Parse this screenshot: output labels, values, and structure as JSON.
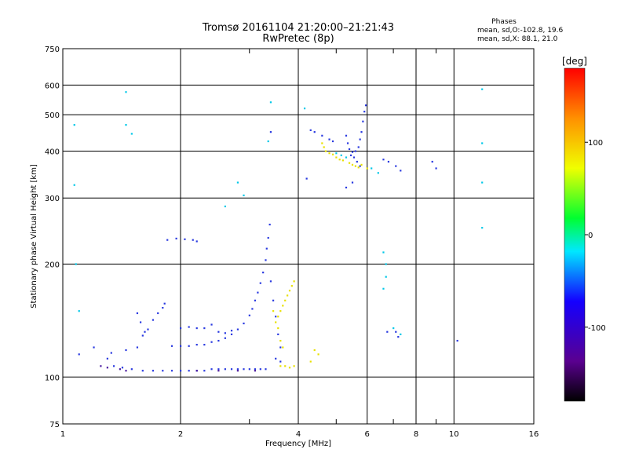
{
  "header": {
    "title_line1": "Tromsø 20161104 21:20:00–21:21:43",
    "title_line2": "RwPretec (8p)"
  },
  "phases": {
    "heading": "Phases",
    "line_o": "mean, sd,O:-102.8, 19.6",
    "line_x": "mean, sd,X: 88.1, 21.0"
  },
  "chart_data": {
    "type": "scatter",
    "xlabel": "Frequency [MHz]",
    "ylabel": "Stationary phase Virtual Height [km]",
    "x_scale": "log",
    "y_scale": "log",
    "xlim": [
      1,
      16
    ],
    "ylim": [
      75,
      750
    ],
    "x_ticks": [
      1,
      2,
      4,
      6,
      8,
      10,
      16
    ],
    "x_tick_labels": [
      "1",
      "2",
      "4",
      "6",
      "8",
      "10",
      "16"
    ],
    "y_ticks": [
      75,
      100,
      200,
      300,
      400,
      500,
      600,
      750
    ],
    "y_tick_labels": [
      "75",
      "100",
      "200",
      "300",
      "400",
      "500",
      "600",
      "750"
    ],
    "x_major_grid": [
      1,
      2,
      4,
      6,
      8,
      10,
      16
    ],
    "x_minor_grid": [
      3,
      5,
      7,
      9
    ],
    "y_grid": [
      100,
      200,
      300,
      400,
      500,
      600
    ],
    "grid": true,
    "colorbar": {
      "label": "[deg]",
      "range": [
        -180,
        180
      ],
      "ticks": [
        100,
        0,
        -100
      ],
      "tick_labels": [
        "100",
        "0",
        "-100"
      ],
      "colormap": "rainbow (black-purple-blue-cyan-green-yellow-red)"
    },
    "series": [
      {
        "mode": "O",
        "color": "#2a3ae0",
        "points": [
          [
            1.35,
            107
          ],
          [
            1.42,
            106
          ],
          [
            1.5,
            105
          ],
          [
            1.6,
            104
          ],
          [
            1.7,
            104
          ],
          [
            1.8,
            104
          ],
          [
            1.9,
            104
          ],
          [
            2.0,
            104
          ],
          [
            2.1,
            104
          ],
          [
            2.2,
            104
          ],
          [
            2.3,
            104
          ],
          [
            2.4,
            105
          ],
          [
            2.5,
            105
          ],
          [
            2.6,
            105
          ],
          [
            2.7,
            105
          ],
          [
            2.8,
            105
          ],
          [
            2.9,
            105
          ],
          [
            3.0,
            105
          ],
          [
            3.1,
            105
          ],
          [
            3.2,
            105
          ],
          [
            3.3,
            105
          ],
          [
            1.3,
            112
          ],
          [
            1.33,
            116
          ],
          [
            1.45,
            118
          ],
          [
            1.55,
            120
          ],
          [
            1.6,
            129
          ],
          [
            1.65,
            134
          ],
          [
            1.7,
            142
          ],
          [
            1.75,
            148
          ],
          [
            1.8,
            153
          ],
          [
            1.82,
            157
          ],
          [
            1.9,
            121
          ],
          [
            2.0,
            121
          ],
          [
            2.1,
            121
          ],
          [
            2.2,
            122
          ],
          [
            2.3,
            122
          ],
          [
            2.4,
            124
          ],
          [
            2.5,
            125
          ],
          [
            2.6,
            127
          ],
          [
            2.7,
            130
          ],
          [
            2.8,
            134
          ],
          [
            2.9,
            139
          ],
          [
            3.0,
            146
          ],
          [
            3.05,
            152
          ],
          [
            3.1,
            160
          ],
          [
            3.15,
            168
          ],
          [
            3.2,
            178
          ],
          [
            3.25,
            190
          ],
          [
            3.3,
            205
          ],
          [
            3.32,
            220
          ],
          [
            3.35,
            235
          ],
          [
            3.38,
            255
          ],
          [
            2.0,
            135
          ],
          [
            2.1,
            136
          ],
          [
            2.2,
            135
          ],
          [
            2.3,
            135
          ],
          [
            2.4,
            138
          ],
          [
            2.5,
            132
          ],
          [
            2.6,
            131
          ],
          [
            2.7,
            133
          ],
          [
            1.85,
            232
          ],
          [
            1.95,
            234
          ],
          [
            2.05,
            233
          ],
          [
            2.15,
            232
          ],
          [
            2.2,
            230
          ],
          [
            3.4,
            180
          ],
          [
            3.45,
            160
          ],
          [
            3.5,
            145
          ],
          [
            3.55,
            130
          ],
          [
            3.6,
            120
          ],
          [
            3.5,
            112
          ],
          [
            3.6,
            110
          ],
          [
            1.55,
            148
          ],
          [
            1.58,
            140
          ],
          [
            1.62,
            132
          ],
          [
            1.1,
            115
          ],
          [
            1.2,
            120
          ],
          [
            3.4,
            450
          ],
          [
            4.3,
            455
          ],
          [
            4.4,
            450
          ],
          [
            4.6,
            440
          ],
          [
            4.8,
            430
          ],
          [
            4.9,
            425
          ],
          [
            5.3,
            440
          ],
          [
            5.35,
            420
          ],
          [
            5.4,
            405
          ],
          [
            5.5,
            398
          ],
          [
            5.6,
            400
          ],
          [
            5.7,
            410
          ],
          [
            5.75,
            430
          ],
          [
            5.8,
            450
          ],
          [
            5.85,
            480
          ],
          [
            5.9,
            510
          ],
          [
            5.95,
            530
          ],
          [
            5.45,
            390
          ],
          [
            5.55,
            385
          ],
          [
            5.65,
            375
          ],
          [
            5.75,
            365
          ],
          [
            6.6,
            380
          ],
          [
            6.8,
            375
          ],
          [
            7.1,
            365
          ],
          [
            7.3,
            355
          ],
          [
            4.2,
            338
          ],
          [
            5.3,
            320
          ],
          [
            5.5,
            330
          ],
          [
            6.75,
            132
          ],
          [
            7.1,
            132
          ],
          [
            7.2,
            128
          ],
          [
            10.2,
            125
          ],
          [
            8.8,
            375
          ],
          [
            9.0,
            360
          ]
        ]
      },
      {
        "mode": "X",
        "color": "#e8e000",
        "points": [
          [
            3.5,
            140
          ],
          [
            3.55,
            145
          ],
          [
            3.6,
            150
          ],
          [
            3.65,
            155
          ],
          [
            3.7,
            160
          ],
          [
            3.75,
            165
          ],
          [
            3.8,
            170
          ],
          [
            3.85,
            175
          ],
          [
            3.9,
            180
          ],
          [
            3.45,
            150
          ],
          [
            3.55,
            135
          ],
          [
            3.6,
            125
          ],
          [
            3.65,
            120
          ],
          [
            3.6,
            107
          ],
          [
            3.7,
            107
          ],
          [
            3.8,
            106
          ],
          [
            3.9,
            107
          ],
          [
            4.6,
            420
          ],
          [
            4.65,
            410
          ],
          [
            4.7,
            400
          ],
          [
            4.8,
            395
          ],
          [
            4.9,
            392
          ],
          [
            5.0,
            385
          ],
          [
            5.1,
            380
          ],
          [
            5.2,
            378
          ],
          [
            5.4,
            372
          ],
          [
            5.5,
            368
          ],
          [
            5.6,
            365
          ],
          [
            5.7,
            362
          ],
          [
            5.8,
            368
          ],
          [
            6.0,
            360
          ],
          [
            4.3,
            110
          ],
          [
            4.4,
            118
          ],
          [
            4.5,
            115
          ]
        ]
      },
      {
        "mode": "O-deep",
        "color": "#4a1aa0",
        "points": [
          [
            1.25,
            107
          ],
          [
            1.3,
            106
          ],
          [
            1.4,
            105
          ],
          [
            1.45,
            104
          ],
          [
            2.2,
            104
          ],
          [
            2.5,
            104
          ],
          [
            2.8,
            104
          ],
          [
            3.1,
            104
          ]
        ]
      },
      {
        "mode": "scattered",
        "color": "#00c8e8",
        "points": [
          [
            1.45,
            470
          ],
          [
            1.45,
            575
          ],
          [
            1.5,
            445
          ],
          [
            1.07,
            470
          ],
          [
            1.07,
            325
          ],
          [
            1.08,
            200
          ],
          [
            1.1,
            150
          ],
          [
            2.6,
            285
          ],
          [
            2.8,
            330
          ],
          [
            2.9,
            305
          ],
          [
            3.35,
            425
          ],
          [
            3.4,
            540
          ],
          [
            4.15,
            520
          ],
          [
            5.0,
            395
          ],
          [
            5.15,
            390
          ],
          [
            5.3,
            385
          ],
          [
            6.15,
            360
          ],
          [
            6.4,
            350
          ],
          [
            7.0,
            135
          ],
          [
            7.3,
            130
          ],
          [
            6.6,
            215
          ],
          [
            6.7,
            200
          ],
          [
            6.7,
            185
          ],
          [
            6.6,
            172
          ],
          [
            11.8,
            585
          ],
          [
            11.8,
            250
          ],
          [
            11.8,
            330
          ],
          [
            11.8,
            420
          ]
        ]
      }
    ]
  }
}
